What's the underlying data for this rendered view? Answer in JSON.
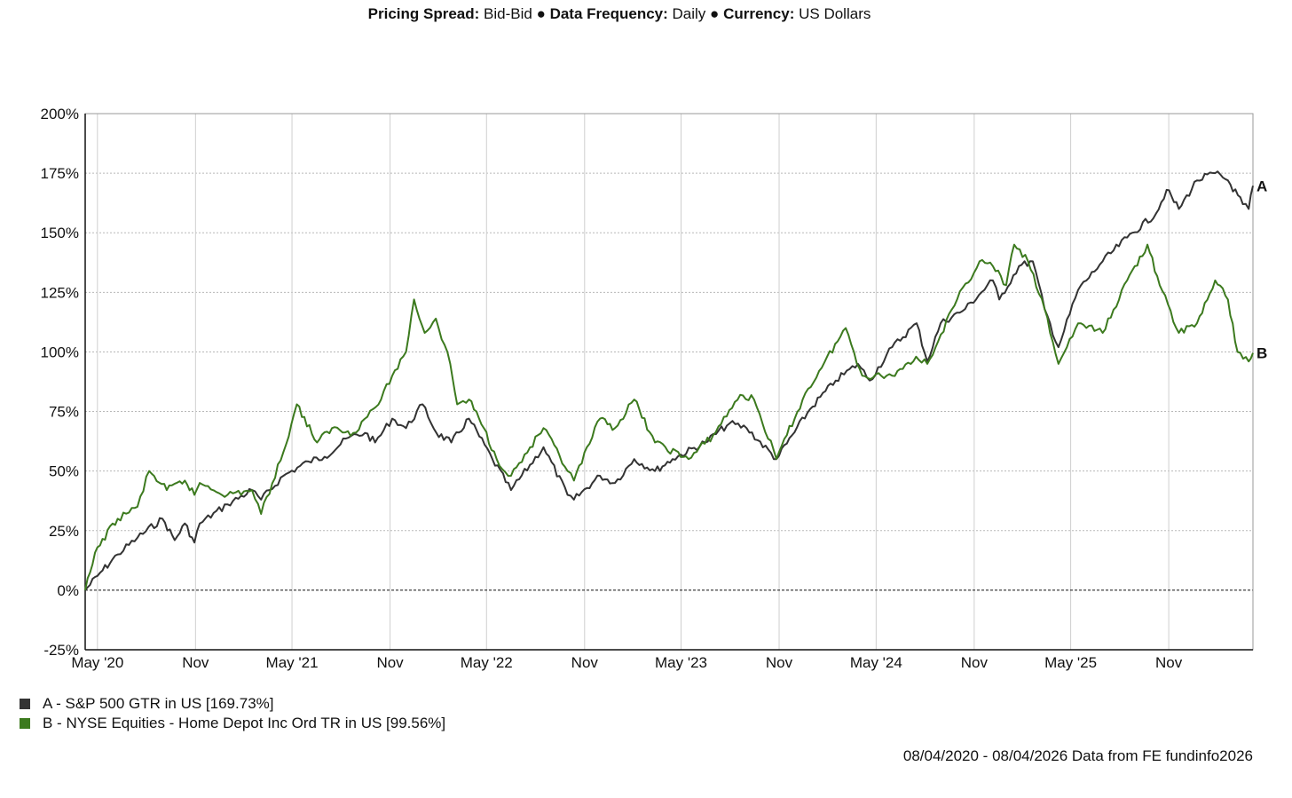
{
  "header": {
    "spread_label": "Pricing Spread:",
    "spread_value": "Bid-Bid",
    "sep1": "●",
    "freq_label": "Data Frequency:",
    "freq_value": "Daily",
    "sep2": "●",
    "currency_label": "Currency:",
    "currency_value": "US Dollars"
  },
  "legend": [
    {
      "text": "A - S&P 500 GTR in US [169.73%]",
      "color": "#333333"
    },
    {
      "text": "B - NYSE Equities - Home Depot Inc Ord TR in US [99.56%]",
      "color": "#3c7a1e"
    }
  ],
  "credits": "08/04/2020 - 08/04/2026 Data from FE fundinfo2026",
  "chart_data": {
    "type": "line",
    "x_range": [
      "2020-04-08",
      "2026-04-08"
    ],
    "ylim": [
      -25,
      200
    ],
    "y_ticks": [
      "200%",
      "175%",
      "150%",
      "125%",
      "100%",
      "75%",
      "50%",
      "25%",
      "0%",
      "-25%"
    ],
    "x_ticks": [
      {
        "label": "May '20",
        "date": "2020-05-01"
      },
      {
        "label": "Nov",
        "date": "2020-11-01"
      },
      {
        "label": "May '21",
        "date": "2021-05-01"
      },
      {
        "label": "Nov",
        "date": "2021-11-01"
      },
      {
        "label": "May '22",
        "date": "2022-05-01"
      },
      {
        "label": "Nov",
        "date": "2022-11-01"
      },
      {
        "label": "May '23",
        "date": "2023-05-01"
      },
      {
        "label": "Nov",
        "date": "2023-11-01"
      },
      {
        "label": "May '24",
        "date": "2024-05-01"
      },
      {
        "label": "Nov",
        "date": "2024-11-01"
      },
      {
        "label": "May '25",
        "date": "2025-05-01"
      },
      {
        "label": "Nov",
        "date": "2025-11-01"
      }
    ],
    "grid": true,
    "series": [
      {
        "name": "A - S&P 500 GTR in US",
        "end_label": "A",
        "color": "#333333",
        "points": [
          [
            "2020-04-08",
            0
          ],
          [
            "2020-05-01",
            6
          ],
          [
            "2020-06-08",
            15
          ],
          [
            "2020-07-15",
            22
          ],
          [
            "2020-08-31",
            30
          ],
          [
            "2020-09-23",
            21
          ],
          [
            "2020-10-12",
            28
          ],
          [
            "2020-10-30",
            20
          ],
          [
            "2020-11-09",
            28
          ],
          [
            "2020-12-31",
            36
          ],
          [
            "2021-02-15",
            42
          ],
          [
            "2021-03-04",
            38
          ],
          [
            "2021-04-15",
            48
          ],
          [
            "2021-06-01",
            54
          ],
          [
            "2021-07-01",
            56
          ],
          [
            "2021-08-15",
            64
          ],
          [
            "2021-09-15",
            66
          ],
          [
            "2021-10-04",
            62
          ],
          [
            "2021-11-05",
            72
          ],
          [
            "2021-12-01",
            68
          ],
          [
            "2022-01-01",
            78
          ],
          [
            "2022-01-27",
            66
          ],
          [
            "2022-02-24",
            62
          ],
          [
            "2022-03-29",
            72
          ],
          [
            "2022-05-12",
            55
          ],
          [
            "2022-06-16",
            42
          ],
          [
            "2022-08-16",
            60
          ],
          [
            "2022-09-30",
            40
          ],
          [
            "2022-10-12",
            38
          ],
          [
            "2022-11-30",
            48
          ],
          [
            "2022-12-28",
            45
          ],
          [
            "2023-02-02",
            55
          ],
          [
            "2023-03-13",
            50
          ],
          [
            "2023-04-15",
            55
          ],
          [
            "2023-06-15",
            62
          ],
          [
            "2023-07-31",
            70
          ],
          [
            "2023-09-01",
            68
          ],
          [
            "2023-10-27",
            55
          ],
          [
            "2023-12-29",
            76
          ],
          [
            "2024-02-15",
            88
          ],
          [
            "2024-03-28",
            95
          ],
          [
            "2024-04-19",
            88
          ],
          [
            "2024-05-31",
            102
          ],
          [
            "2024-07-16",
            112
          ],
          [
            "2024-08-05",
            96
          ],
          [
            "2024-08-30",
            112
          ],
          [
            "2024-10-15",
            118
          ],
          [
            "2024-12-06",
            130
          ],
          [
            "2024-12-18",
            122
          ],
          [
            "2025-01-24",
            136
          ],
          [
            "2025-02-19",
            138
          ],
          [
            "2025-03-13",
            118
          ],
          [
            "2025-04-08",
            102
          ],
          [
            "2025-05-15",
            126
          ],
          [
            "2025-06-30",
            138
          ],
          [
            "2025-08-15",
            148
          ],
          [
            "2025-10-08",
            158
          ],
          [
            "2025-10-28",
            168
          ],
          [
            "2025-11-20",
            160
          ],
          [
            "2025-12-24",
            172
          ],
          [
            "2026-01-27",
            175
          ],
          [
            "2026-02-20",
            172
          ],
          [
            "2026-03-20",
            162
          ],
          [
            "2026-03-31",
            160
          ],
          [
            "2026-04-08",
            169.73
          ]
        ]
      },
      {
        "name": "B - NYSE Equities - Home Depot Inc Ord TR in US",
        "end_label": "B",
        "color": "#3c7a1e",
        "points": [
          [
            "2020-04-08",
            0
          ],
          [
            "2020-05-01",
            18
          ],
          [
            "2020-06-08",
            30
          ],
          [
            "2020-07-15",
            35
          ],
          [
            "2020-08-06",
            50
          ],
          [
            "2020-09-08",
            42
          ],
          [
            "2020-10-12",
            46
          ],
          [
            "2020-10-30",
            40
          ],
          [
            "2020-11-09",
            45
          ],
          [
            "2020-12-31",
            40
          ],
          [
            "2021-02-15",
            42
          ],
          [
            "2021-03-04",
            32
          ],
          [
            "2021-04-15",
            58
          ],
          [
            "2021-05-10",
            78
          ],
          [
            "2021-06-17",
            62
          ],
          [
            "2021-07-15",
            68
          ],
          [
            "2021-08-24",
            66
          ],
          [
            "2021-09-30",
            76
          ],
          [
            "2021-10-15",
            80
          ],
          [
            "2021-11-05",
            90
          ],
          [
            "2021-12-01",
            100
          ],
          [
            "2021-12-16",
            122
          ],
          [
            "2022-01-05",
            108
          ],
          [
            "2022-01-26",
            114
          ],
          [
            "2022-02-22",
            95
          ],
          [
            "2022-03-07",
            78
          ],
          [
            "2022-03-29",
            80
          ],
          [
            "2022-04-26",
            68
          ],
          [
            "2022-05-20",
            55
          ],
          [
            "2022-06-16",
            48
          ],
          [
            "2022-08-16",
            68
          ],
          [
            "2022-09-30",
            50
          ],
          [
            "2022-10-12",
            46
          ],
          [
            "2022-11-30",
            72
          ],
          [
            "2022-12-28",
            68
          ],
          [
            "2023-02-02",
            80
          ],
          [
            "2023-03-13",
            62
          ],
          [
            "2023-05-15",
            55
          ],
          [
            "2023-06-30",
            65
          ],
          [
            "2023-08-20",
            82
          ],
          [
            "2023-09-15",
            80
          ],
          [
            "2023-10-27",
            55
          ],
          [
            "2023-12-15",
            80
          ],
          [
            "2024-01-15",
            92
          ],
          [
            "2024-03-05",
            110
          ],
          [
            "2024-04-05",
            90
          ],
          [
            "2024-05-31",
            90
          ],
          [
            "2024-07-15",
            98
          ],
          [
            "2024-08-05",
            95
          ],
          [
            "2024-09-30",
            122
          ],
          [
            "2024-11-11",
            138
          ],
          [
            "2024-12-06",
            136
          ],
          [
            "2024-12-31",
            128
          ],
          [
            "2025-01-15",
            145
          ],
          [
            "2025-02-10",
            138
          ],
          [
            "2025-03-13",
            118
          ],
          [
            "2025-04-08",
            95
          ],
          [
            "2025-05-15",
            112
          ],
          [
            "2025-06-30",
            108
          ],
          [
            "2025-08-15",
            130
          ],
          [
            "2025-09-22",
            145
          ],
          [
            "2025-10-15",
            128
          ],
          [
            "2025-11-20",
            108
          ],
          [
            "2025-12-24",
            112
          ],
          [
            "2026-01-27",
            130
          ],
          [
            "2026-02-20",
            122
          ],
          [
            "2026-03-10",
            100
          ],
          [
            "2026-03-31",
            96
          ],
          [
            "2026-04-08",
            99.56
          ]
        ]
      }
    ]
  }
}
